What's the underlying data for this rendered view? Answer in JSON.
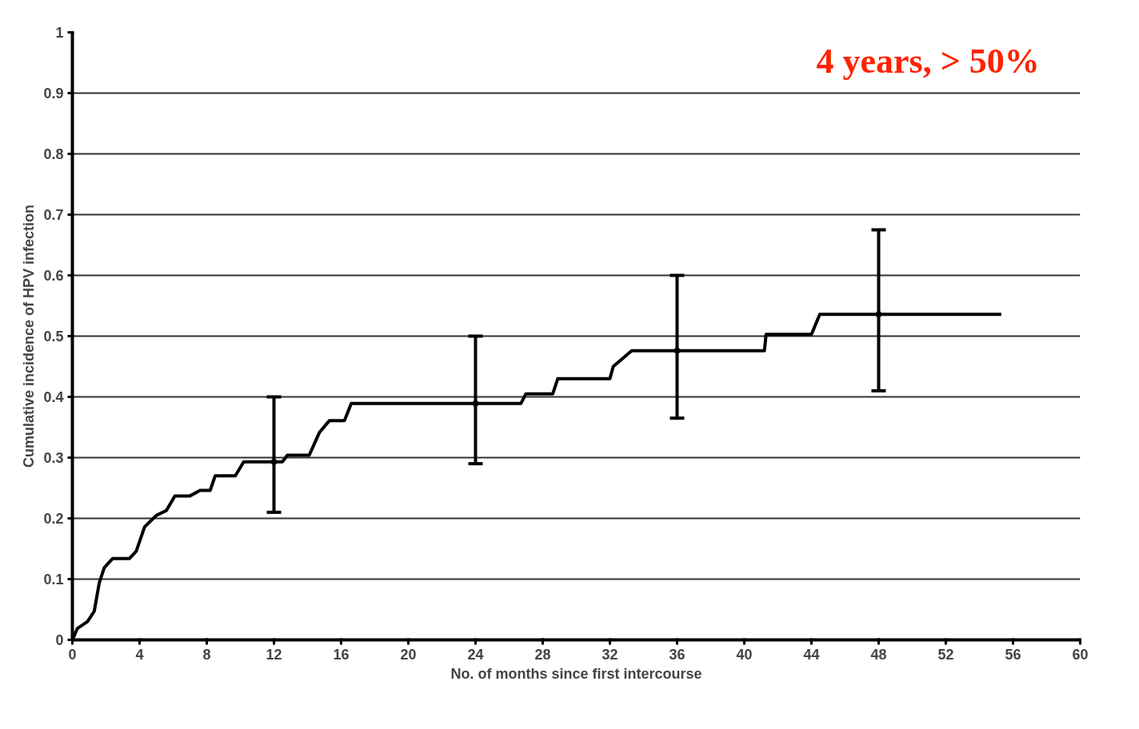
{
  "chart_data": {
    "type": "line",
    "xlabel": "No. of months since first intercourse",
    "ylabel": "Cumulative incidence of HPV infection",
    "xlim": [
      0,
      60
    ],
    "xticks": [
      0,
      4,
      8,
      12,
      16,
      20,
      24,
      28,
      32,
      36,
      40,
      44,
      48,
      52,
      56,
      60
    ],
    "ylim": [
      0,
      1
    ],
    "yticks": [
      0,
      0.1,
      0.2,
      0.3,
      0.4,
      0.5,
      0.6,
      0.7,
      0.8,
      0.9,
      1
    ],
    "grid": "y",
    "line_style": "solid",
    "marker": "none",
    "annotations": [
      "4 years, > 50%"
    ],
    "series": [
      {
        "color": "#000000",
        "x": [
          0,
          0.3,
          0.9,
          1.3,
          1.6,
          1.9,
          2.4,
          3.4,
          3.8,
          4.3,
          5.0,
          5.6,
          6.1,
          7.0,
          7.6,
          8.2,
          8.5,
          9.7,
          10.2,
          12.5,
          12.8,
          14.1,
          14.7,
          15.3,
          16.2,
          16.6,
          26.7,
          27.0,
          28.6,
          28.9,
          32.0,
          32.2,
          33.3,
          41.2,
          41.3,
          44.0,
          44.5,
          55.3
        ],
        "values": [
          0,
          0.019,
          0.03,
          0.047,
          0.094,
          0.119,
          0.134,
          0.134,
          0.146,
          0.186,
          0.205,
          0.213,
          0.237,
          0.237,
          0.246,
          0.246,
          0.27,
          0.27,
          0.293,
          0.293,
          0.304,
          0.304,
          0.341,
          0.361,
          0.361,
          0.389,
          0.389,
          0.405,
          0.405,
          0.43,
          0.43,
          0.45,
          0.476,
          0.476,
          0.503,
          0.503,
          0.536,
          0.536
        ]
      },
      {
        "type": "scatter",
        "marker": "circle",
        "color": "#000000",
        "x": [
          12,
          24,
          36,
          48
        ],
        "values": [
          0.293,
          0.389,
          0.476,
          0.536
        ],
        "errors": [
          [
            0.21,
            0.4
          ],
          [
            0.29,
            0.5
          ],
          [
            0.365,
            0.6
          ],
          [
            0.41,
            0.675
          ]
        ]
      }
    ]
  }
}
